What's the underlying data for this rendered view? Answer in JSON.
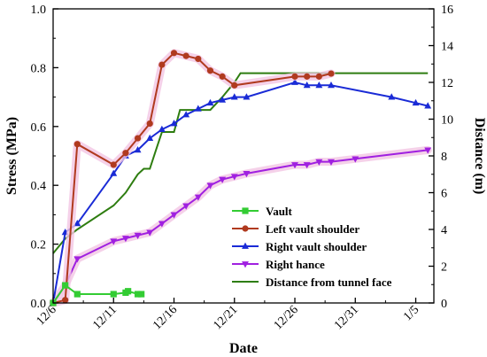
{
  "chart_data": {
    "type": "line",
    "xlabel": "Date",
    "ylabel": "Stress (MPa)",
    "y2label": "Distance (m)",
    "x_ticks": [
      "12/6",
      "12/11",
      "12/16",
      "12/21",
      "12/26",
      "12/31",
      "1/5"
    ],
    "x_tick_days": [
      0,
      5,
      10,
      15,
      20,
      25,
      30
    ],
    "xlim_days": [
      0,
      31.5
    ],
    "ylim": [
      0,
      1.0
    ],
    "y_ticks": [
      "0.0",
      "0.2",
      "0.4",
      "0.6",
      "0.8",
      "1.0"
    ],
    "y_tick_values": [
      0,
      0.2,
      0.4,
      0.6,
      0.8,
      1.0
    ],
    "y2lim": [
      0,
      16
    ],
    "y2_ticks": [
      "0",
      "2",
      "4",
      "6",
      "8",
      "10",
      "12",
      "14",
      "16"
    ],
    "y2_tick_values": [
      0,
      2,
      4,
      6,
      8,
      10,
      12,
      14,
      16
    ],
    "legend_position": "bottom-right",
    "series": [
      {
        "name": "Vault",
        "axis": "left",
        "color": "#33cc33",
        "marker": "square",
        "x_days": [
          0,
          1,
          2,
          5,
          6,
          6.2,
          7,
          7.3
        ],
        "values": [
          0.0,
          0.06,
          0.03,
          0.03,
          0.035,
          0.04,
          0.03,
          0.03
        ]
      },
      {
        "name": "Left vault shoulder",
        "axis": "left",
        "color": "#b03a1f",
        "marker": "circle",
        "glow": true,
        "x_days": [
          0,
          1,
          2,
          5,
          6,
          7,
          8,
          9,
          10,
          11,
          12,
          13,
          14,
          15,
          20,
          21,
          22,
          23
        ],
        "values": [
          0.0,
          0.01,
          0.54,
          0.47,
          0.51,
          0.56,
          0.61,
          0.81,
          0.85,
          0.84,
          0.83,
          0.79,
          0.77,
          0.74,
          0.77,
          0.77,
          0.77,
          0.78
        ]
      },
      {
        "name": "Right vault shoulder",
        "axis": "left",
        "color": "#1a2bd6",
        "marker": "triangle-up",
        "x_days": [
          0,
          1,
          2,
          5,
          6,
          7,
          8,
          9,
          10,
          11,
          12,
          13,
          14,
          15,
          16,
          20,
          21,
          22,
          23,
          28,
          30,
          31
        ],
        "values": [
          0.0,
          0.24,
          0.27,
          0.44,
          0.5,
          0.52,
          0.56,
          0.59,
          0.61,
          0.64,
          0.66,
          0.68,
          0.69,
          0.7,
          0.7,
          0.75,
          0.74,
          0.74,
          0.74,
          0.7,
          0.68,
          0.67
        ]
      },
      {
        "name": "Right hance",
        "axis": "left",
        "color": "#a020e0",
        "marker": "triangle-down",
        "glow": true,
        "x_days": [
          0,
          1,
          2,
          5,
          6,
          7,
          8,
          9,
          10,
          11,
          12,
          13,
          14,
          15,
          16,
          20,
          21,
          22,
          23,
          25,
          31
        ],
        "values": [
          0.0,
          0.06,
          0.15,
          0.21,
          0.22,
          0.23,
          0.24,
          0.27,
          0.3,
          0.33,
          0.36,
          0.4,
          0.42,
          0.43,
          0.44,
          0.47,
          0.47,
          0.48,
          0.48,
          0.49,
          0.52
        ]
      },
      {
        "name": "Distance from tunnel face",
        "axis": "right",
        "color": "#2e7d10",
        "marker": "none",
        "x_days": [
          0,
          1,
          2,
          5,
          6,
          7,
          7.5,
          8,
          8.5,
          9,
          10,
          10.5,
          11,
          12,
          13,
          14,
          15,
          15.5,
          31
        ],
        "values": [
          2.7,
          3.5,
          4.0,
          5.3,
          6.0,
          7.0,
          7.3,
          7.3,
          8.3,
          9.3,
          9.3,
          10.5,
          10.5,
          10.5,
          10.5,
          11.2,
          12.0,
          12.5,
          12.5
        ]
      }
    ]
  }
}
